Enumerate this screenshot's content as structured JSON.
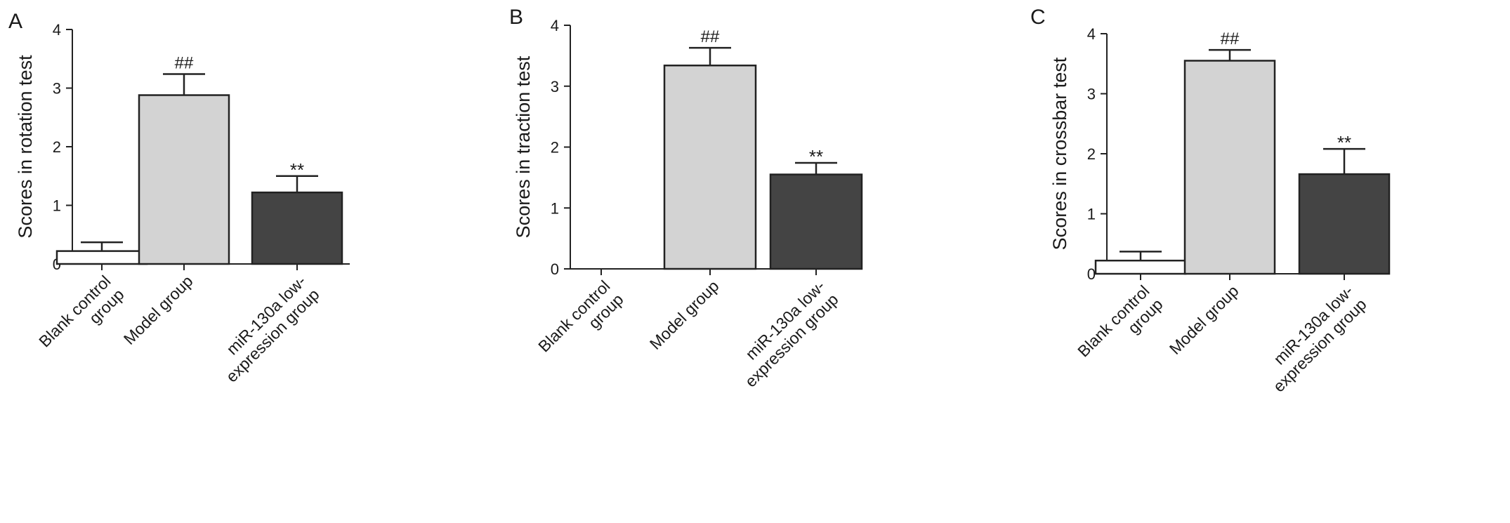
{
  "chart_data": [
    {
      "panel": "A",
      "type": "bar",
      "ylabel": "Scores in rotation test",
      "ylim": [
        0,
        4
      ],
      "yticks": [
        "0",
        "1",
        "2",
        "3",
        "4"
      ],
      "categories": [
        [
          "Blank control",
          "group"
        ],
        [
          "Model group"
        ],
        [
          "miR-130a low-",
          "expression group"
        ]
      ],
      "values": [
        0.22,
        2.88,
        1.22
      ],
      "errors": [
        0.15,
        0.36,
        0.28
      ],
      "annotations": [
        "",
        "##",
        "**"
      ],
      "colors": [
        "#ffffff",
        "#d3d3d3",
        "#444444"
      ]
    },
    {
      "panel": "B",
      "type": "bar",
      "ylabel": "Scores in traction test",
      "ylim": [
        0,
        4
      ],
      "yticks": [
        "0",
        "1",
        "2",
        "3",
        "4"
      ],
      "categories": [
        [
          "Blank control",
          "group"
        ],
        [
          "Model group"
        ],
        [
          "miR-130a low-",
          "expression group"
        ]
      ],
      "values": [
        0,
        3.34,
        1.55
      ],
      "errors": [
        0,
        0.29,
        0.19
      ],
      "annotations": [
        "",
        "##",
        "**"
      ],
      "colors": [
        "#ffffff",
        "#d3d3d3",
        "#444444"
      ]
    },
    {
      "panel": "C",
      "type": "bar",
      "ylabel": "Scores in crossbar test",
      "ylim": [
        0,
        4
      ],
      "yticks": [
        "0",
        "1",
        "2",
        "3",
        "4"
      ],
      "categories": [
        [
          "Blank control",
          "group"
        ],
        [
          "Model group"
        ],
        [
          "miR-130a low-",
          "expression group"
        ]
      ],
      "values": [
        0.22,
        3.55,
        1.66
      ],
      "errors": [
        0.15,
        0.18,
        0.42
      ],
      "annotations": [
        "",
        "##",
        "**"
      ],
      "colors": [
        "#ffffff",
        "#d3d3d3",
        "#444444"
      ]
    }
  ]
}
